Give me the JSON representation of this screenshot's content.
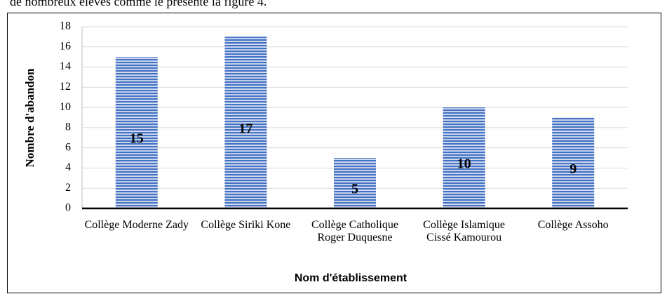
{
  "text_above": "de nombreux élèves comme le présente la figure 4.",
  "chart_data": {
    "type": "bar",
    "categories": [
      "Collège Moderne Zady",
      "Collège Siriki Kone",
      "Collège Catholique Roger Duquesne",
      "Collège Islamique Cissé Kamourou",
      "Collège Assoho"
    ],
    "values": [
      15,
      17,
      5,
      10,
      9
    ],
    "color": "#4472c4",
    "ylabel": "Nombre d'abandon",
    "xlabel": "Nom d'établissement",
    "ylim": [
      0,
      18
    ],
    "yticks": [
      0,
      2,
      4,
      6,
      8,
      10,
      12,
      14,
      16,
      18
    ],
    "grid": true
  }
}
